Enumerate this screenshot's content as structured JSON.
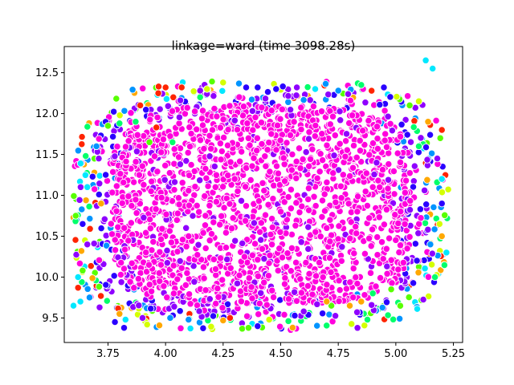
{
  "chart_data": {
    "type": "scatter",
    "title": "linkage=ward (time 3098.28s)",
    "xlabel": "",
    "ylabel": "",
    "xlim": [
      3.56,
      5.29
    ],
    "ylim": [
      9.2,
      12.82
    ],
    "xticks": [
      3.75,
      4.0,
      4.25,
      4.5,
      4.75,
      5.0,
      5.25
    ],
    "xtick_labels": [
      "3.75",
      "4.00",
      "4.25",
      "4.50",
      "4.75",
      "5.00",
      "5.25"
    ],
    "yticks": [
      9.5,
      10.0,
      10.5,
      11.0,
      11.5,
      12.0,
      12.5
    ],
    "ytick_labels": [
      "9.5",
      "10.0",
      "10.5",
      "11.0",
      "11.5",
      "12.0",
      "12.5"
    ],
    "grid": false,
    "marker_edge_color": "#ffffff",
    "cluster_colors": [
      "#ff00dd",
      "#8f00ff",
      "#2a00ff",
      "#0094ff",
      "#00e8ff",
      "#00ff6a",
      "#57ff00",
      "#d4ff00",
      "#ffa800",
      "#ff2400"
    ],
    "dominant_cluster_color": "#ff00dd",
    "cloud_extent": {
      "x": [
        3.6,
        5.23
      ],
      "y": [
        9.35,
        12.4
      ]
    },
    "series": [
      {
        "label_color": "#00e8ff",
        "points": [
          [
            5.13,
            12.65
          ],
          [
            5.16,
            12.55
          ],
          [
            3.6,
            9.65
          ],
          [
            3.62,
            10.0
          ],
          [
            3.66,
            11.1
          ],
          [
            5.22,
            10.3
          ],
          [
            5.2,
            11.2
          ],
          [
            4.65,
            12.3
          ],
          [
            3.63,
            9.7
          ]
        ]
      },
      {
        "label_color": "#57ff00",
        "points": [
          [
            3.75,
            11.85
          ],
          [
            3.93,
            11.65
          ],
          [
            4.72,
            9.65
          ],
          [
            4.98,
            9.85
          ],
          [
            3.61,
            10.75
          ],
          [
            5.06,
            12.1
          ],
          [
            4.36,
            9.38
          ],
          [
            3.64,
            10.08
          ]
        ]
      },
      {
        "label_color": "#00ff6a",
        "points": [
          [
            3.8,
            11.88
          ],
          [
            3.87,
            11.9
          ],
          [
            4.15,
            12.2
          ],
          [
            4.85,
            12.35
          ],
          [
            5.1,
            11.6
          ],
          [
            4.03,
            11.65
          ],
          [
            5.17,
            10.0
          ],
          [
            4.9,
            9.8
          ]
        ]
      },
      {
        "label_color": "#ff2400",
        "points": [
          [
            3.97,
            12.33
          ],
          [
            4.0,
            12.32
          ],
          [
            4.07,
            12.32
          ],
          [
            3.89,
            12.1
          ],
          [
            3.96,
            11.83
          ],
          [
            3.62,
            9.87
          ],
          [
            5.2,
            11.8
          ],
          [
            4.28,
            9.5
          ]
        ]
      },
      {
        "label_color": "#ffa800",
        "points": [
          [
            4.7,
            9.7
          ],
          [
            4.8,
            9.65
          ],
          [
            4.85,
            9.7
          ],
          [
            5.2,
            10.5
          ],
          [
            4.25,
            9.47
          ],
          [
            3.72,
            10.9
          ],
          [
            3.8,
            9.55
          ],
          [
            5.14,
            11.9
          ]
        ]
      },
      {
        "label_color": "#d4ff00",
        "points": [
          [
            4.25,
            12.38
          ],
          [
            4.18,
            12.3
          ],
          [
            3.92,
            9.42
          ],
          [
            5.1,
            12.15
          ],
          [
            4.45,
            9.48
          ],
          [
            3.65,
            10.45
          ],
          [
            5.19,
            10.65
          ]
        ]
      },
      {
        "label_color": "#2a00ff",
        "points": [
          [
            4.35,
            12.32
          ],
          [
            4.4,
            12.32
          ],
          [
            4.48,
            12.3
          ],
          [
            3.74,
            11.25
          ],
          [
            3.78,
            9.45
          ],
          [
            3.82,
            9.38
          ],
          [
            3.64,
            10.65
          ],
          [
            4.4,
            9.4
          ],
          [
            5.2,
            10.9
          ]
        ]
      },
      {
        "label_color": "#8f00ff",
        "points": [
          [
            4.15,
            12.28
          ],
          [
            4.57,
            12.32
          ],
          [
            3.66,
            10.4
          ],
          [
            3.71,
            11.45
          ],
          [
            3.9,
            9.5
          ],
          [
            5.18,
            11.45
          ],
          [
            4.6,
            9.58
          ]
        ]
      },
      {
        "label_color": "#0094ff",
        "points": [
          [
            3.67,
            9.75
          ],
          [
            4.02,
            9.5
          ],
          [
            4.1,
            9.48
          ],
          [
            5.15,
            10.4
          ],
          [
            4.75,
            12.28
          ],
          [
            3.7,
            11.6
          ]
        ]
      },
      {
        "label_color": "#ff00dd",
        "points": [
          [
            4.5,
            10.8
          ],
          [
            4.3,
            11.2
          ],
          [
            4.7,
            10.6
          ],
          [
            4.1,
            10.5
          ],
          [
            4.9,
            11.1
          ]
        ]
      }
    ]
  }
}
